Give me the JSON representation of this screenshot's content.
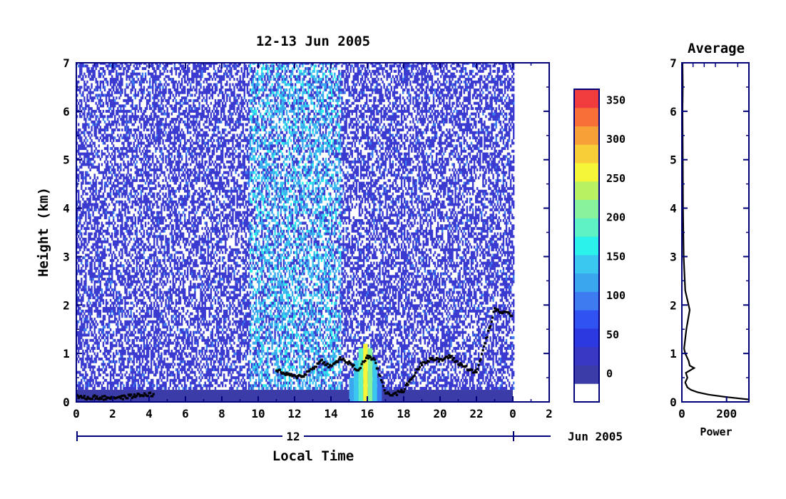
{
  "chart_data": [
    {
      "type": "heatmap",
      "title": "12-13 Jun 2005",
      "xlabel": "Local Time",
      "ylabel": "Height (km)",
      "xlim": [
        0,
        26
      ],
      "ylim": [
        0,
        7
      ],
      "x_ticks": [
        "0",
        "2",
        "4",
        "6",
        "8",
        "10",
        "12",
        "14",
        "16",
        "18",
        "20",
        "22",
        "0",
        "2"
      ],
      "y_ticks": [
        "0",
        "1",
        "2",
        "3",
        "4",
        "5",
        "6",
        "7"
      ],
      "date_axis": {
        "day_label": "12",
        "month_label": "Jun 2005"
      },
      "data_extent_hours": [
        0,
        24
      ],
      "colorbar": {
        "ticks": [
          "0",
          "50",
          "100",
          "150",
          "200",
          "250",
          "300",
          "350"
        ],
        "levels": [
          0,
          25,
          50,
          75,
          100,
          125,
          150,
          175,
          200,
          225,
          250,
          275,
          300,
          325,
          350,
          375
        ],
        "colors": [
          "#ffffff",
          "#3c3ca8",
          "#3838c4",
          "#2c38e0",
          "#2f52f0",
          "#3c7cf0",
          "#3aa6ee",
          "#3ac8f0",
          "#2cf2ec",
          "#5ef2c4",
          "#88f29c",
          "#b8f262",
          "#f6f638",
          "#f8ce38",
          "#f8a038",
          "#f87038",
          "#f03c3c"
        ]
      },
      "features": {
        "background_echo_color": "#3a3ad0",
        "surface_layer_km": 0.25,
        "enhanced_band_hours": [
          9.5,
          14.5
        ],
        "convective_cell_hours": [
          15,
          16.8
        ]
      },
      "boundary_layer_top": {
        "x": [
          0.0,
          0.5,
          1,
          1.5,
          2,
          2.5,
          3,
          3.5,
          4,
          4.3,
          11,
          11.5,
          12,
          12.5,
          13,
          13.5,
          14,
          14.5,
          15,
          15.5,
          16,
          16.4,
          17,
          17.5,
          18,
          19,
          19.5,
          20,
          20.5,
          21,
          21.5,
          22,
          23,
          23.5,
          24
        ],
        "y": [
          0.12,
          0.08,
          0.1,
          0.08,
          0.1,
          0.09,
          0.12,
          0.14,
          0.16,
          0.14,
          0.65,
          0.58,
          0.52,
          0.55,
          0.7,
          0.85,
          0.72,
          0.9,
          0.8,
          0.65,
          0.95,
          0.85,
          0.2,
          0.15,
          0.25,
          0.8,
          0.9,
          0.85,
          0.95,
          0.8,
          0.7,
          0.6,
          1.9,
          1.85,
          1.8
        ]
      }
    },
    {
      "type": "line",
      "title": "Average",
      "xlabel": "Power",
      "ylabel": "",
      "xlim": [
        0,
        300
      ],
      "ylim": [
        0,
        7
      ],
      "x_ticks": [
        "0",
        "200"
      ],
      "y_ticks": [
        "0",
        "1",
        "2",
        "3",
        "4",
        "5",
        "6",
        "7"
      ],
      "series": [
        {
          "x": [
            300,
            200,
            120,
            70,
            40,
            25,
            15,
            25,
            18,
            55,
            35,
            30,
            20,
            15,
            10,
            20,
            35,
            30,
            15,
            8,
            5,
            4,
            3,
            4,
            3
          ],
          "y": [
            0.05,
            0.1,
            0.15,
            0.2,
            0.25,
            0.3,
            0.4,
            0.5,
            0.6,
            0.7,
            0.75,
            0.85,
            0.95,
            1.0,
            1.1,
            1.5,
            1.9,
            2.0,
            2.3,
            3.0,
            4.0,
            5.0,
            6.0,
            6.5,
            7.0
          ]
        }
      ]
    }
  ]
}
